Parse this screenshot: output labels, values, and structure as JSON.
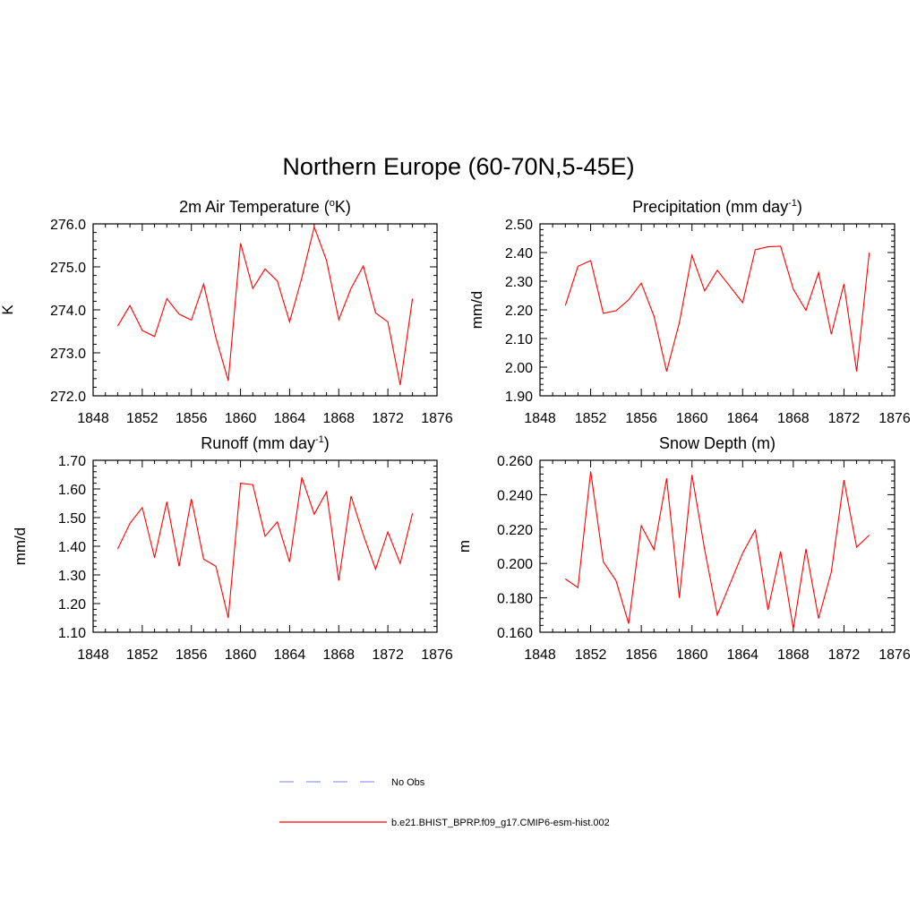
{
  "title": "Northern Europe (60-70N,5-45E)",
  "colors": {
    "model": "#ff0000",
    "obs": "#9999ff"
  },
  "chart_data": [
    {
      "type": "line",
      "title": "2m Air Temperature (",
      "title_sup": "o",
      "title_after": "K)",
      "ylabel": "K",
      "xlim": [
        1848,
        1876
      ],
      "ylim": [
        272.0,
        276.0
      ],
      "x_ticks": [
        "1848",
        "1852",
        "1856",
        "1860",
        "1864",
        "1868",
        "1872",
        "1876"
      ],
      "y_ticks": [
        "272.0",
        "273.0",
        "274.0",
        "275.0",
        "276.0"
      ],
      "x": [
        1850,
        1851,
        1852,
        1853,
        1854,
        1855,
        1856,
        1857,
        1858,
        1859,
        1860,
        1861,
        1862,
        1863,
        1864,
        1865,
        1866,
        1867,
        1868,
        1869,
        1870,
        1871,
        1872,
        1873,
        1874
      ],
      "series": [
        {
          "name": "b.e21.BHIST_BPRP.f09_g17.CMIP6-esm-hist.002",
          "values": [
            273.62,
            274.1,
            273.52,
            273.38,
            274.26,
            273.9,
            273.76,
            274.6,
            273.35,
            272.35,
            275.55,
            274.5,
            274.95,
            274.67,
            273.72,
            274.75,
            275.93,
            275.15,
            273.77,
            274.5,
            275.02,
            273.93,
            273.72,
            272.25,
            274.26
          ]
        }
      ]
    },
    {
      "type": "line",
      "title": "Precipitation (mm day",
      "title_sup": "-1",
      "title_after": ")",
      "ylabel": "mm/d",
      "xlim": [
        1848,
        1876
      ],
      "ylim": [
        1.9,
        2.5
      ],
      "x_ticks": [
        "1848",
        "1852",
        "1856",
        "1860",
        "1864",
        "1868",
        "1872",
        "1876"
      ],
      "y_ticks": [
        "1.90",
        "2.00",
        "2.10",
        "2.20",
        "2.30",
        "2.40",
        "2.50"
      ],
      "x": [
        1850,
        1851,
        1852,
        1853,
        1854,
        1855,
        1856,
        1857,
        1858,
        1859,
        1860,
        1861,
        1862,
        1863,
        1864,
        1865,
        1866,
        1867,
        1868,
        1869,
        1870,
        1871,
        1872,
        1873,
        1874
      ],
      "series": [
        {
          "name": "b.e21.BHIST_BPRP.f09_g17.CMIP6-esm-hist.002",
          "values": [
            2.215,
            2.352,
            2.372,
            2.188,
            2.197,
            2.235,
            2.293,
            2.178,
            1.985,
            2.155,
            2.39,
            2.266,
            2.338,
            2.282,
            2.225,
            2.41,
            2.42,
            2.422,
            2.272,
            2.198,
            2.33,
            2.115,
            2.29,
            1.985,
            2.4
          ]
        }
      ]
    },
    {
      "type": "line",
      "title": "Runoff (mm day",
      "title_sup": "-1",
      "title_after": ")",
      "ylabel": "mm/d",
      "xlim": [
        1848,
        1876
      ],
      "ylim": [
        1.1,
        1.7
      ],
      "x_ticks": [
        "1848",
        "1852",
        "1856",
        "1860",
        "1864",
        "1868",
        "1872",
        "1876"
      ],
      "y_ticks": [
        "1.10",
        "1.20",
        "1.30",
        "1.40",
        "1.50",
        "1.60",
        "1.70"
      ],
      "x": [
        1850,
        1851,
        1852,
        1853,
        1854,
        1855,
        1856,
        1857,
        1858,
        1859,
        1860,
        1861,
        1862,
        1863,
        1864,
        1865,
        1866,
        1867,
        1868,
        1869,
        1870,
        1871,
        1872,
        1873,
        1874
      ],
      "series": [
        {
          "name": "b.e21.BHIST_BPRP.f09_g17.CMIP6-esm-hist.002",
          "values": [
            1.39,
            1.48,
            1.535,
            1.36,
            1.555,
            1.33,
            1.565,
            1.355,
            1.33,
            1.15,
            1.62,
            1.615,
            1.435,
            1.485,
            1.345,
            1.64,
            1.512,
            1.59,
            1.28,
            1.575,
            1.44,
            1.32,
            1.45,
            1.34,
            1.515
          ]
        }
      ]
    },
    {
      "type": "line",
      "title": "Snow Depth (m)",
      "title_sup": "",
      "title_after": "",
      "ylabel": "m",
      "xlim": [
        1848,
        1876
      ],
      "ylim": [
        0.16,
        0.26
      ],
      "x_ticks": [
        "1848",
        "1852",
        "1856",
        "1860",
        "1864",
        "1868",
        "1872",
        "1876"
      ],
      "y_ticks": [
        "0.160",
        "0.180",
        "0.200",
        "0.220",
        "0.240",
        "0.260"
      ],
      "x": [
        1850,
        1851,
        1852,
        1853,
        1854,
        1855,
        1856,
        1857,
        1858,
        1859,
        1860,
        1861,
        1862,
        1863,
        1864,
        1865,
        1866,
        1867,
        1868,
        1869,
        1870,
        1871,
        1872,
        1873,
        1874
      ],
      "series": [
        {
          "name": "b.e21.BHIST_BPRP.f09_g17.CMIP6-esm-hist.002",
          "values": [
            0.191,
            0.186,
            0.2535,
            0.201,
            0.19,
            0.165,
            0.222,
            0.208,
            0.2495,
            0.18,
            0.2515,
            0.208,
            0.17,
            0.188,
            0.206,
            0.2195,
            0.173,
            0.207,
            0.162,
            0.2085,
            0.168,
            0.195,
            0.2485,
            0.2095,
            0.2165
          ]
        }
      ]
    }
  ],
  "legend": [
    {
      "label": "No Obs",
      "style": "dashed",
      "color": "#9999ff"
    },
    {
      "label": "b.e21.BHIST_BPRP.f09_g17.CMIP6-esm-hist.002",
      "style": "solid",
      "color": "#ff0000"
    }
  ]
}
